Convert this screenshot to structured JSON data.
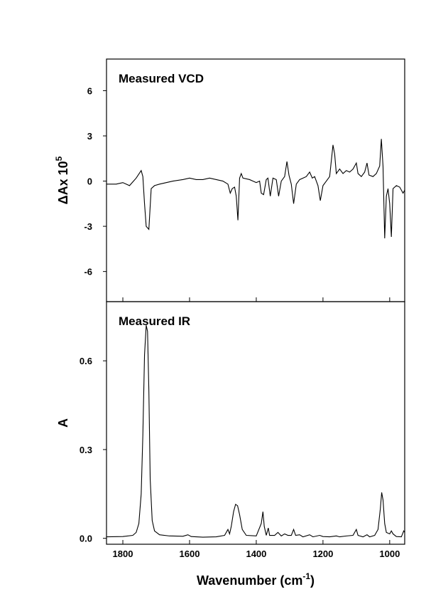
{
  "chart_data": [
    {
      "type": "line",
      "title": "Measured VCD",
      "ylabel": "ΔAx 10",
      "ylabel_sup": "5",
      "xlim": [
        1849,
        955
      ],
      "xticks": [
        1800,
        1600,
        1400,
        1200,
        1000
      ],
      "ylim": [
        -8,
        8.1
      ],
      "yticks": [
        6,
        3,
        0,
        -3,
        -6
      ],
      "x": [
        1849,
        1820,
        1800,
        1780,
        1760,
        1745,
        1740,
        1735,
        1730,
        1722,
        1715,
        1705,
        1690,
        1670,
        1650,
        1620,
        1600,
        1580,
        1560,
        1540,
        1520,
        1500,
        1485,
        1478,
        1472,
        1465,
        1460,
        1455,
        1450,
        1445,
        1440,
        1420,
        1400,
        1390,
        1385,
        1378,
        1370,
        1365,
        1358,
        1350,
        1340,
        1333,
        1325,
        1315,
        1308,
        1302,
        1295,
        1288,
        1280,
        1270,
        1260,
        1250,
        1240,
        1232,
        1225,
        1215,
        1208,
        1200,
        1190,
        1180,
        1170,
        1165,
        1160,
        1150,
        1140,
        1130,
        1120,
        1110,
        1100,
        1095,
        1085,
        1075,
        1068,
        1062,
        1050,
        1040,
        1030,
        1025,
        1020,
        1015,
        1010,
        1005,
        1000,
        995,
        990,
        980,
        970,
        960,
        955
      ],
      "series": [
        {
          "color": "#000000",
          "values": [
            -0.2,
            -0.2,
            -0.1,
            -0.3,
            0.2,
            0.7,
            0.3,
            -1.5,
            -3.0,
            -3.2,
            -0.5,
            -0.3,
            -0.2,
            -0.1,
            0,
            0.1,
            0.2,
            0.1,
            0.1,
            0.2,
            0.1,
            0,
            -0.2,
            -0.8,
            -0.5,
            -0.4,
            -1.0,
            -2.6,
            0.2,
            0.5,
            0.2,
            0.1,
            -0.1,
            0,
            -0.8,
            -0.9,
            0.1,
            0.2,
            -1.0,
            0.2,
            0.1,
            -1.0,
            0,
            0.3,
            1.3,
            0.4,
            -0.2,
            -1.5,
            -0.2,
            0.1,
            0.2,
            0.3,
            0.6,
            0.2,
            0.3,
            -0.3,
            -1.3,
            -0.3,
            0,
            0.3,
            2.4,
            1.8,
            0.5,
            0.8,
            0.5,
            0.7,
            0.6,
            0.8,
            1.2,
            0.5,
            0.3,
            0.6,
            1.2,
            0.4,
            0.3,
            0.5,
            1.0,
            2.8,
            1.0,
            -3.8,
            -1.0,
            -0.5,
            -1.5,
            -3.7,
            -0.5,
            -0.3,
            -0.4,
            -0.8,
            -0.6
          ]
        }
      ]
    },
    {
      "type": "line",
      "title": "Measured IR",
      "ylabel": "A",
      "xlabel_parts": [
        "Wavenumber (cm",
        "-1",
        ")"
      ],
      "xlim": [
        1849,
        955
      ],
      "xticks": [
        1800,
        1600,
        1400,
        1200,
        1000
      ],
      "ylim": [
        -0.02,
        0.8
      ],
      "yticks": [
        {
          "value": 0,
          "label": "0.0"
        },
        0.3,
        0.6
      ],
      "x": [
        1849,
        1800,
        1770,
        1760,
        1752,
        1745,
        1740,
        1735,
        1730,
        1726,
        1722,
        1718,
        1712,
        1705,
        1690,
        1660,
        1620,
        1605,
        1595,
        1560,
        1520,
        1495,
        1485,
        1480,
        1475,
        1468,
        1462,
        1456,
        1450,
        1442,
        1430,
        1400,
        1385,
        1380,
        1376,
        1370,
        1364,
        1360,
        1345,
        1335,
        1325,
        1315,
        1305,
        1295,
        1288,
        1282,
        1270,
        1260,
        1240,
        1230,
        1210,
        1200,
        1180,
        1160,
        1150,
        1130,
        1110,
        1100,
        1095,
        1080,
        1068,
        1060,
        1045,
        1035,
        1028,
        1024,
        1020,
        1015,
        1010,
        1000,
        995,
        990,
        980,
        965,
        958,
        955
      ],
      "series": [
        {
          "color": "#000000",
          "values": [
            0.005,
            0.006,
            0.01,
            0.02,
            0.05,
            0.15,
            0.35,
            0.62,
            0.72,
            0.7,
            0.5,
            0.2,
            0.06,
            0.025,
            0.012,
            0.008,
            0.007,
            0.012,
            0.006,
            0.004,
            0.005,
            0.01,
            0.03,
            0.015,
            0.04,
            0.09,
            0.115,
            0.11,
            0.08,
            0.03,
            0.01,
            0.008,
            0.05,
            0.09,
            0.04,
            0.01,
            0.035,
            0.01,
            0.01,
            0.02,
            0.008,
            0.015,
            0.01,
            0.01,
            0.03,
            0.01,
            0.012,
            0.005,
            0.012,
            0.005,
            0.01,
            0.006,
            0.005,
            0.008,
            0.005,
            0.008,
            0.01,
            0.03,
            0.01,
            0.005,
            0.012,
            0.005,
            0.01,
            0.03,
            0.1,
            0.155,
            0.13,
            0.05,
            0.02,
            0.015,
            0.025,
            0.015,
            0.006,
            0.005,
            0.025,
            0.02
          ]
        }
      ]
    }
  ]
}
